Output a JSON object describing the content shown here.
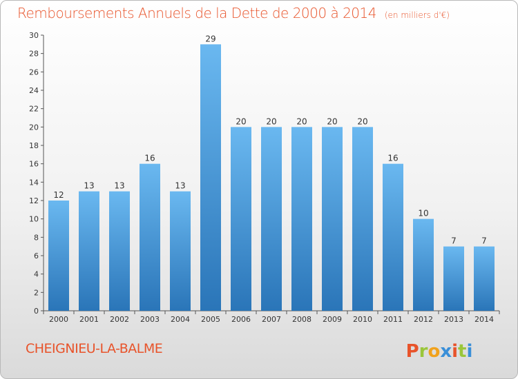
{
  "header": {
    "title": "Remboursements Annuels de la Dette de 2000 à 2014",
    "subtitle": "(en milliers d'€)"
  },
  "footer": {
    "city": "CHEIGNIEU-LA-BALME",
    "logo_text": "Proxiti"
  },
  "colors": {
    "title": "#e8532a",
    "bar_top": "#6ab8f0",
    "bar_bottom": "#2a75b8",
    "logo_letters": [
      "#e8532a",
      "#9ac63a",
      "#f1a21c",
      "#3a8fd8",
      "#e8532a",
      "#9ac63a",
      "#3a8fd8"
    ]
  },
  "chart_data": {
    "type": "bar",
    "categories": [
      "2000",
      "2001",
      "2002",
      "2003",
      "2004",
      "2005",
      "2006",
      "2007",
      "2008",
      "2009",
      "2010",
      "2011",
      "2012",
      "2013",
      "2014"
    ],
    "values": [
      12,
      13,
      13,
      16,
      13,
      29,
      20,
      20,
      20,
      20,
      20,
      16,
      10,
      7,
      7
    ],
    "title": "Remboursements Annuels de la Dette de 2000 à 2014",
    "xlabel": "",
    "ylabel": "",
    "ylim": [
      0,
      30
    ],
    "yticks": [
      0,
      2,
      4,
      6,
      8,
      10,
      12,
      14,
      16,
      18,
      20,
      22,
      24,
      26,
      28,
      30
    ],
    "grid": false,
    "data_labels": true
  }
}
